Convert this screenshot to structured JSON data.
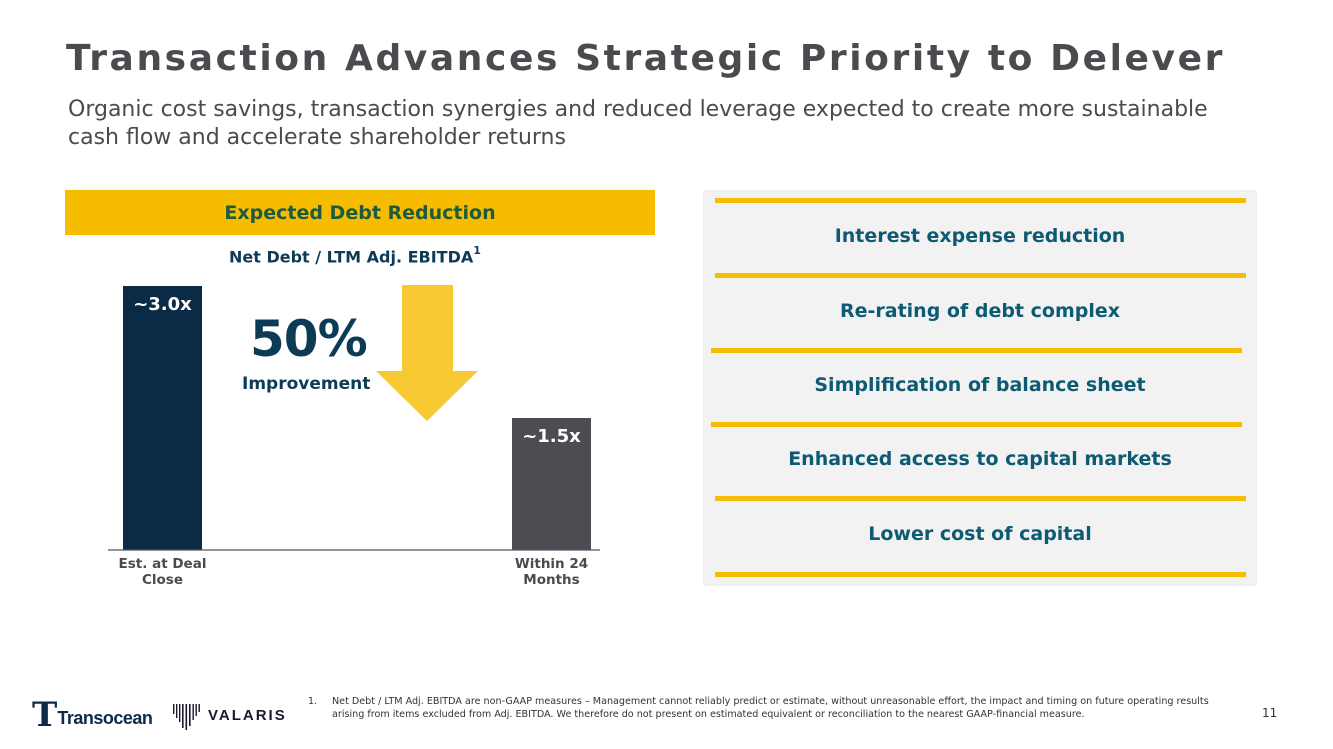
{
  "slide": {
    "title": "Transaction Advances Strategic Priority to Delever",
    "subtitle": "Organic cost savings, transaction synergies and reduced leverage expected to create more sustainable cash flow and accelerate shareholder returns",
    "page_number": "11"
  },
  "left_panel": {
    "header": "Expected Debt Reduction",
    "improvement_value": "50%",
    "improvement_label": "Improvement"
  },
  "chart_data": {
    "type": "bar",
    "title": "Net Debt / LTM Adj. EBITDA",
    "title_superscript": "1",
    "categories": [
      "Est. at Deal Close",
      "Within 24 Months"
    ],
    "category_lines": [
      [
        "Est. at Deal",
        "Close"
      ],
      [
        "Within 24",
        "Months"
      ]
    ],
    "values": [
      3.0,
      1.5
    ],
    "data_labels": [
      "~3.0x",
      "~1.5x"
    ],
    "bar_colors": [
      "#0b2a45",
      "#4b4d52"
    ],
    "arrow_color": "#f5bc00",
    "ylim": [
      0,
      3.0
    ],
    "grid": false
  },
  "benefits": {
    "items": [
      "Interest expense reduction",
      "Re-rating of debt complex",
      "Simplification of balance sheet",
      "Enhanced access to capital markets",
      "Lower cost of capital"
    ],
    "line_color": "#f5bc00",
    "text_color": "#0d5a73"
  },
  "footer": {
    "logo_transocean": "Transocean",
    "logo_valaris": "VALARIS",
    "footnote_number": "1.",
    "footnote_text": "Net Debt / LTM Adj. EBITDA are non-GAAP measures – Management cannot reliably predict or estimate, without unreasonable effort, the impact and timing on future operating results arising from items excluded from Adj. EBITDA. We therefore do not present on estimated equivalent or reconciliation to the nearest GAAP-financial measure."
  }
}
